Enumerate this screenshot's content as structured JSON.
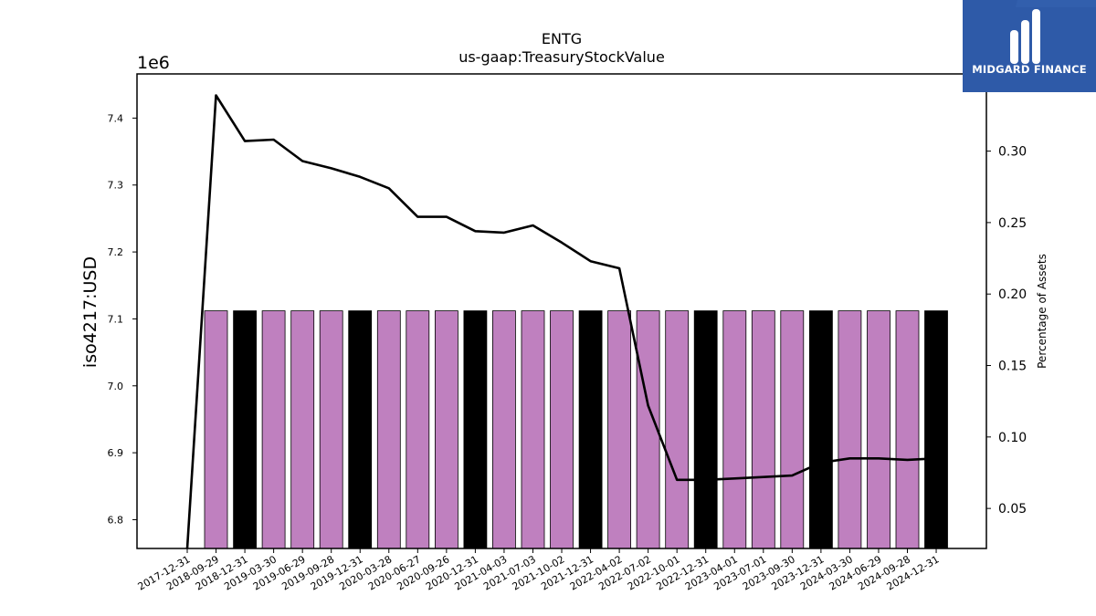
{
  "chart_data": {
    "type": "bar+line",
    "title": "ENTG",
    "subtitle": "us-gaap:TreasuryStockValue",
    "ylabel": "iso4217:USD",
    "y2label": "Percentage of Assets",
    "y_offset_label": "1e6",
    "ylim": [
      6.757,
      7.466
    ],
    "y2lim": [
      0.022,
      0.354
    ],
    "yticks": [
      "6.8",
      "6.9",
      "7.0",
      "7.1",
      "7.2",
      "7.3",
      "7.4"
    ],
    "y2ticks": [
      "0.05",
      "0.10",
      "0.15",
      "0.20",
      "0.25",
      "0.30"
    ],
    "categories": [
      "2017-12-31",
      "2018-09-29",
      "2018-12-31",
      "2019-03-30",
      "2019-06-29",
      "2019-09-28",
      "2019-12-31",
      "2020-03-28",
      "2020-06-27",
      "2020-09-26",
      "2020-12-31",
      "2021-04-03",
      "2021-07-03",
      "2021-10-02",
      "2021-12-31",
      "2022-04-02",
      "2022-07-02",
      "2022-10-01",
      "2022-12-31",
      "2023-04-01",
      "2023-07-01",
      "2023-09-30",
      "2023-12-31",
      "2024-03-30",
      "2024-06-29",
      "2024-09-28",
      "2024-12-31"
    ],
    "bar_values": [
      null,
      7.112,
      7.112,
      7.112,
      7.112,
      7.112,
      7.112,
      7.112,
      7.112,
      7.112,
      7.112,
      7.112,
      7.112,
      7.112,
      7.112,
      7.112,
      7.112,
      7.112,
      7.112,
      7.112,
      7.112,
      7.112,
      7.112,
      7.112,
      7.112,
      7.112,
      7.112
    ],
    "bar_colors": [
      null,
      "#bf80bf",
      "#000000",
      "#bf80bf",
      "#bf80bf",
      "#bf80bf",
      "#000000",
      "#bf80bf",
      "#bf80bf",
      "#bf80bf",
      "#000000",
      "#bf80bf",
      "#bf80bf",
      "#bf80bf",
      "#000000",
      "#bf80bf",
      "#bf80bf",
      "#bf80bf",
      "#000000",
      "#bf80bf",
      "#bf80bf",
      "#bf80bf",
      "#000000",
      "#bf80bf",
      "#bf80bf",
      "#bf80bf",
      "#000000"
    ],
    "line_values": [
      0.022,
      0.339,
      0.307,
      0.308,
      0.293,
      0.288,
      0.282,
      0.274,
      0.254,
      0.254,
      0.244,
      0.243,
      0.248,
      0.236,
      0.223,
      0.218,
      0.122,
      0.07,
      0.07,
      0.071,
      0.072,
      0.073,
      0.082,
      0.085,
      0.085,
      0.084,
      0.085
    ],
    "line_color": "#000000"
  },
  "logo": {
    "text": "MIDGARD FINANCE",
    "background": "#2e5aa8"
  }
}
